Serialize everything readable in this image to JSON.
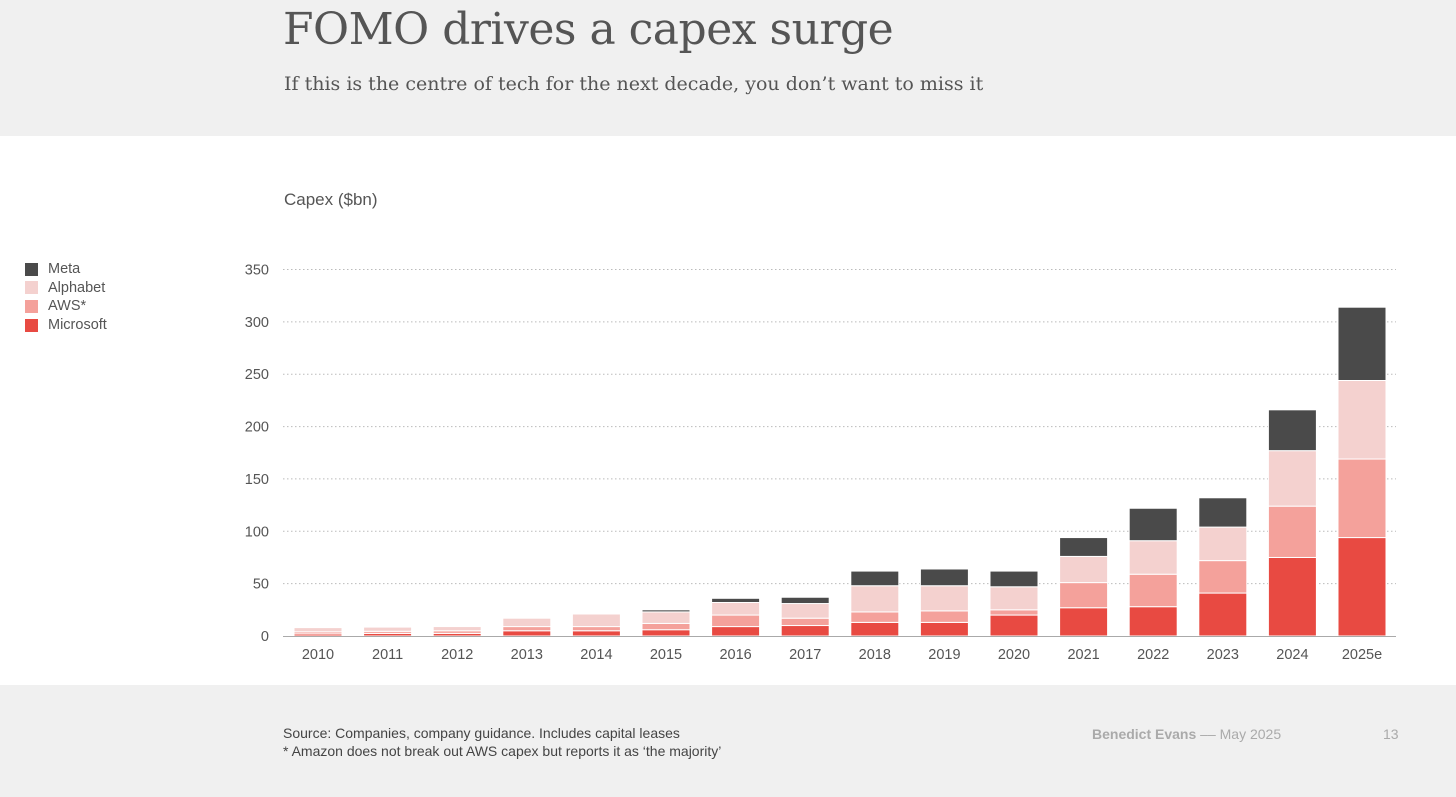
{
  "header": {
    "title": "FOMO drives a capex surge",
    "subtitle": "If this is the centre of tech for the next decade, you don’t want to miss it"
  },
  "chart_data": {
    "type": "bar",
    "stacked": true,
    "ylabel": "Capex ($bn)",
    "ylim": [
      0,
      350
    ],
    "yticks": [
      0,
      50,
      100,
      150,
      200,
      250,
      300,
      350
    ],
    "grid": true,
    "legend_position": "left",
    "categories": [
      "2010",
      "2011",
      "2012",
      "2013",
      "2014",
      "2015",
      "2016",
      "2017",
      "2018",
      "2019",
      "2020",
      "2021",
      "2022",
      "2023",
      "2024",
      "2025e"
    ],
    "series": [
      {
        "name": "Microsoft",
        "color": "#e84a42",
        "values": [
          2,
          2.5,
          2.5,
          5,
          5,
          6,
          9,
          10,
          13,
          13,
          20,
          27,
          28,
          41,
          75,
          94
        ]
      },
      {
        "name": "AWS*",
        "color": "#f4a19b",
        "values": [
          2,
          2,
          2.5,
          4,
          4,
          6,
          11,
          7,
          10,
          11,
          5,
          24,
          31,
          31,
          49,
          75
        ]
      },
      {
        "name": "Alphabet",
        "color": "#f4d1cf",
        "values": [
          4,
          4,
          4,
          8,
          12,
          11,
          12,
          14,
          25,
          24,
          22,
          25,
          32,
          32,
          53,
          75
        ]
      },
      {
        "name": "Meta",
        "color": "#4a4a4a",
        "values": [
          0,
          0,
          0,
          0,
          0,
          2,
          4,
          6,
          14,
          16,
          15,
          18,
          31,
          28,
          39,
          70
        ]
      }
    ]
  },
  "footer": {
    "source_line1": "Source: Companies, company guidance. Includes capital leases",
    "source_line2": "* Amazon does not break out AWS capex but reports it as ‘the majority’",
    "author": "Benedict Evans",
    "separator": "––",
    "date": "May 2025",
    "page_number": "13"
  }
}
